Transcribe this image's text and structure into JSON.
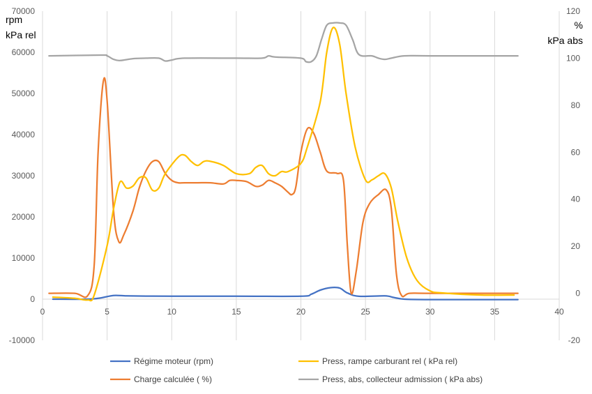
{
  "chart_data": {
    "type": "line",
    "grid": "vertical gridlines only",
    "left_axis": {
      "label_lines": [
        "rpm",
        "kPa rel"
      ],
      "range": [
        -10000,
        70000
      ],
      "ticks": [
        -10000,
        0,
        10000,
        20000,
        30000,
        40000,
        50000,
        60000,
        70000
      ]
    },
    "right_axis": {
      "label_lines": [
        "%",
        "kPa abs"
      ],
      "range": [
        -20,
        120
      ],
      "ticks": [
        -20,
        0,
        20,
        40,
        60,
        80,
        100,
        120
      ]
    },
    "x_axis": {
      "range": [
        0,
        40
      ],
      "ticks": [
        0,
        5,
        10,
        15,
        20,
        25,
        30,
        35,
        40
      ]
    },
    "legend_position": "bottom",
    "series": [
      {
        "name": "Régime moteur (rpm)",
        "axis": "left",
        "color": "#4472C4",
        "points": [
          [
            0.8,
            0
          ],
          [
            3.5,
            0
          ],
          [
            4.5,
            300
          ],
          [
            5.5,
            900
          ],
          [
            6.5,
            800
          ],
          [
            8,
            750
          ],
          [
            10,
            720
          ],
          [
            15,
            720
          ],
          [
            20,
            720
          ],
          [
            20.8,
            1200
          ],
          [
            21.5,
            2200
          ],
          [
            22.3,
            2800
          ],
          [
            23,
            2700
          ],
          [
            23.6,
            1500
          ],
          [
            24.5,
            700
          ],
          [
            26.5,
            800
          ],
          [
            27.2,
            400
          ],
          [
            28,
            0
          ],
          [
            30,
            -100
          ],
          [
            36.8,
            -100
          ]
        ]
      },
      {
        "name": "Press, rampe carburant rel ( kPa rel)",
        "axis": "left",
        "color": "#FFC000",
        "points": [
          [
            0.8,
            500
          ],
          [
            2.5,
            200
          ],
          [
            3.5,
            -200
          ],
          [
            4,
            1000
          ],
          [
            5,
            13000
          ],
          [
            5.5,
            22000
          ],
          [
            6,
            28500
          ],
          [
            6.5,
            27000
          ],
          [
            7,
            27500
          ],
          [
            7.5,
            29500
          ],
          [
            8,
            29500
          ],
          [
            8.5,
            26500
          ],
          [
            9,
            27000
          ],
          [
            9.5,
            30500
          ],
          [
            10.5,
            34500
          ],
          [
            11,
            35000
          ],
          [
            11.5,
            33500
          ],
          [
            12,
            32500
          ],
          [
            12.5,
            33500
          ],
          [
            13,
            33500
          ],
          [
            14,
            32500
          ],
          [
            15,
            30500
          ],
          [
            16,
            30500
          ],
          [
            16.5,
            32000
          ],
          [
            17,
            32500
          ],
          [
            17.5,
            30500
          ],
          [
            18,
            30000
          ],
          [
            18.5,
            31000
          ],
          [
            19,
            31000
          ],
          [
            20,
            33000
          ],
          [
            20.5,
            37000
          ],
          [
            21.5,
            48000
          ],
          [
            22,
            60000
          ],
          [
            22.5,
            66000
          ],
          [
            23,
            62000
          ],
          [
            23.5,
            50000
          ],
          [
            24.2,
            37000
          ],
          [
            25,
            29000
          ],
          [
            25.5,
            29000
          ],
          [
            26,
            30000
          ],
          [
            26.5,
            30500
          ],
          [
            27,
            27000
          ],
          [
            27.5,
            19000
          ],
          [
            28.2,
            10000
          ],
          [
            29,
            4500
          ],
          [
            30,
            2000
          ],
          [
            31,
            1500
          ],
          [
            34,
            1000
          ],
          [
            36.5,
            1000
          ]
        ]
      },
      {
        "name": "Charge calculée ( %)",
        "axis": "right",
        "color": "#ED7D31",
        "points": [
          [
            0.5,
            0
          ],
          [
            2.5,
            0
          ],
          [
            3.5,
            -1
          ],
          [
            4,
            12
          ],
          [
            4.3,
            60
          ],
          [
            4.7,
            90
          ],
          [
            5,
            82
          ],
          [
            5.5,
            35
          ],
          [
            5.9,
            22
          ],
          [
            6.3,
            25
          ],
          [
            7,
            35
          ],
          [
            7.5,
            45
          ],
          [
            8,
            52
          ],
          [
            8.5,
            56
          ],
          [
            9,
            56
          ],
          [
            9.5,
            51
          ],
          [
            10,
            48
          ],
          [
            10.5,
            47
          ],
          [
            11,
            47
          ],
          [
            12,
            47
          ],
          [
            13,
            47
          ],
          [
            14,
            46.5
          ],
          [
            14.5,
            48
          ],
          [
            15,
            48
          ],
          [
            15.8,
            47.5
          ],
          [
            16.5,
            45.5
          ],
          [
            17,
            46
          ],
          [
            17.5,
            48
          ],
          [
            18,
            47
          ],
          [
            18.5,
            45.5
          ],
          [
            19,
            43
          ],
          [
            19.3,
            42
          ],
          [
            19.6,
            45
          ],
          [
            20,
            60
          ],
          [
            20.5,
            70
          ],
          [
            21,
            68
          ],
          [
            21.5,
            60
          ],
          [
            22,
            52
          ],
          [
            22.8,
            51
          ],
          [
            23.3,
            48
          ],
          [
            23.6,
            20
          ],
          [
            23.9,
            0
          ],
          [
            24.3,
            10
          ],
          [
            24.8,
            30
          ],
          [
            25.3,
            38
          ],
          [
            26,
            42
          ],
          [
            26.6,
            44
          ],
          [
            27,
            36
          ],
          [
            27.4,
            8
          ],
          [
            27.8,
            -1
          ],
          [
            28.4,
            0
          ],
          [
            30,
            0
          ],
          [
            36.8,
            0
          ]
        ]
      },
      {
        "name": "Press, abs, collecteur admission ( kPa abs)",
        "axis": "right",
        "color": "#A5A5A5",
        "points": [
          [
            0.5,
            101
          ],
          [
            4.5,
            101.3
          ],
          [
            5,
            101
          ],
          [
            5.5,
            99.5
          ],
          [
            6,
            99
          ],
          [
            7,
            99.8
          ],
          [
            8,
            100
          ],
          [
            9,
            100
          ],
          [
            9.5,
            98.8
          ],
          [
            10,
            99.2
          ],
          [
            11,
            100
          ],
          [
            15,
            100
          ],
          [
            17,
            100
          ],
          [
            17.5,
            101
          ],
          [
            18,
            100.5
          ],
          [
            20,
            100
          ],
          [
            20.4,
            98.5
          ],
          [
            20.8,
            98.5
          ],
          [
            21.2,
            101
          ],
          [
            21.6,
            108
          ],
          [
            22,
            114
          ],
          [
            22.5,
            115
          ],
          [
            23,
            115
          ],
          [
            23.5,
            114
          ],
          [
            24,
            108
          ],
          [
            24.5,
            101.5
          ],
          [
            25.5,
            101
          ],
          [
            26,
            100
          ],
          [
            26.5,
            99.5
          ],
          [
            27,
            100
          ],
          [
            28,
            101
          ],
          [
            30,
            101
          ],
          [
            36.8,
            101
          ]
        ]
      }
    ]
  }
}
